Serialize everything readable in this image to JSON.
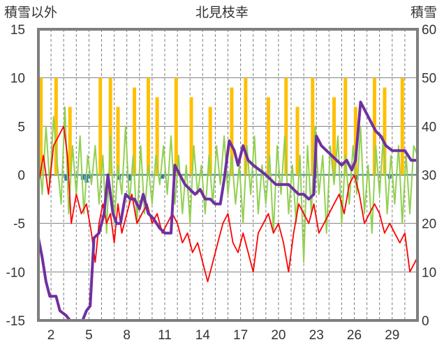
{
  "chart_data": {
    "type": "line",
    "title": "北見枝幸",
    "ylabel": "積雪以外",
    "y2label": "積雪",
    "ylim": [
      -15,
      15
    ],
    "y2lim": [
      0,
      60
    ],
    "yticks": [
      "15",
      "10",
      "5",
      "0",
      "-5",
      "-10",
      "-15"
    ],
    "y2ticks": [
      "60",
      "50",
      "40",
      "30",
      "20",
      "10",
      "0"
    ],
    "xlim": [
      1,
      31
    ],
    "xticks": [
      "2",
      "5",
      "8",
      "11",
      "14",
      "17",
      "20",
      "23",
      "26",
      "29"
    ],
    "grid": true,
    "colors": {
      "frame": "#7f7f7f",
      "grid": "#7f7f7f",
      "temperature": "#ff0000",
      "green_series": "#92d050",
      "snowfall_bars": "#ffc000",
      "negative_bars": "#2e75b6",
      "snow_depth": "#7030a0",
      "zero_line": "#5f8f8f"
    },
    "series": [
      {
        "type": "bar",
        "color": "#ffc000",
        "axis": "left",
        "points": [
          [
            1.2,
            10
          ],
          [
            2.4,
            10
          ],
          [
            3.5,
            7
          ],
          [
            5.9,
            10
          ],
          [
            6.7,
            10
          ],
          [
            7.3,
            7
          ],
          [
            8.6,
            9
          ],
          [
            9.7,
            10
          ],
          [
            10.4,
            8
          ],
          [
            11.9,
            10
          ],
          [
            13.1,
            8
          ],
          [
            14.6,
            7
          ],
          [
            16.3,
            9
          ],
          [
            17.4,
            10
          ],
          [
            19.2,
            8
          ],
          [
            20.6,
            10
          ],
          [
            21.5,
            7
          ],
          [
            22.7,
            10
          ],
          [
            24.4,
            8
          ],
          [
            25.3,
            10
          ],
          [
            26.1,
            7
          ],
          [
            27.6,
            10
          ],
          [
            28.4,
            9
          ],
          [
            29.8,
            10
          ]
        ]
      },
      {
        "type": "bar",
        "color": "#2e75b6",
        "axis": "left",
        "points": [
          [
            3.2,
            -0.6
          ],
          [
            4.5,
            -0.5
          ],
          [
            4.8,
            -0.8
          ],
          [
            5.1,
            -0.4
          ],
          [
            7.4,
            -0.5
          ],
          [
            8.2,
            -0.6
          ],
          [
            10.8,
            -0.4
          ],
          [
            26.2,
            -0.5
          ],
          [
            28.8,
            -0.4
          ]
        ]
      },
      {
        "type": "line",
        "color": "#92d050",
        "axis": "left",
        "points": [
          [
            1,
            3
          ],
          [
            1.3,
            -2
          ],
          [
            1.6,
            5
          ],
          [
            1.9,
            -1
          ],
          [
            2.2,
            6
          ],
          [
            2.5,
            1
          ],
          [
            2.8,
            -3
          ],
          [
            3.1,
            7
          ],
          [
            3.4,
            -4
          ],
          [
            3.7,
            3
          ],
          [
            4,
            -2
          ],
          [
            4.3,
            4
          ],
          [
            4.6,
            -4
          ],
          [
            4.9,
            2
          ],
          [
            5.2,
            -1
          ],
          [
            5.5,
            3
          ],
          [
            5.8,
            -3
          ],
          [
            6.1,
            2
          ],
          [
            6.4,
            -6
          ],
          [
            6.7,
            4
          ],
          [
            7,
            -5
          ],
          [
            7.3,
            1
          ],
          [
            7.6,
            -2
          ],
          [
            7.9,
            5
          ],
          [
            8.2,
            -3
          ],
          [
            8.5,
            2
          ],
          [
            8.8,
            -5
          ],
          [
            9.1,
            3
          ],
          [
            9.4,
            -4
          ],
          [
            9.7,
            1
          ],
          [
            10,
            -3
          ],
          [
            10.3,
            2
          ],
          [
            10.6,
            -1
          ],
          [
            10.9,
            3
          ],
          [
            11.2,
            -2
          ],
          [
            11.5,
            4
          ],
          [
            11.8,
            -3
          ],
          [
            12.1,
            2
          ],
          [
            12.4,
            -4
          ],
          [
            12.7,
            1
          ],
          [
            13,
            -5
          ],
          [
            13.3,
            3
          ],
          [
            13.6,
            -2
          ],
          [
            13.9,
            1
          ],
          [
            14.2,
            -4
          ],
          [
            14.5,
            2
          ],
          [
            14.8,
            -3
          ],
          [
            15.1,
            3
          ],
          [
            15.4,
            -1
          ],
          [
            15.7,
            4
          ],
          [
            16,
            -2
          ],
          [
            16.3,
            2
          ],
          [
            16.6,
            -3
          ],
          [
            16.9,
            1
          ],
          [
            17.2,
            -5
          ],
          [
            17.5,
            3
          ],
          [
            17.8,
            -2
          ],
          [
            18.1,
            4
          ],
          [
            18.4,
            -4
          ],
          [
            18.7,
            1
          ],
          [
            19,
            -3
          ],
          [
            19.3,
            2
          ],
          [
            19.6,
            -6
          ],
          [
            19.9,
            3
          ],
          [
            20.2,
            -2
          ],
          [
            20.5,
            4
          ],
          [
            20.8,
            -4
          ],
          [
            21.1,
            1
          ],
          [
            21.4,
            -5
          ],
          [
            21.7,
            2
          ],
          [
            22,
            -9
          ],
          [
            22.3,
            3
          ],
          [
            22.6,
            -4
          ],
          [
            22.9,
            5
          ],
          [
            23.2,
            -2
          ],
          [
            23.5,
            2
          ],
          [
            23.8,
            -6
          ],
          [
            24.1,
            3
          ],
          [
            24.4,
            -1
          ],
          [
            24.7,
            4
          ],
          [
            25,
            -5
          ],
          [
            25.3,
            2
          ],
          [
            25.6,
            -3
          ],
          [
            25.9,
            3
          ],
          [
            26.2,
            -2
          ],
          [
            26.5,
            5
          ],
          [
            26.8,
            -4
          ],
          [
            27.1,
            1
          ],
          [
            27.4,
            -6
          ],
          [
            27.7,
            3
          ],
          [
            28,
            -2
          ],
          [
            28.3,
            4
          ],
          [
            28.6,
            -4
          ],
          [
            28.9,
            2
          ],
          [
            29.2,
            -3
          ],
          [
            29.5,
            3
          ],
          [
            29.8,
            -5
          ],
          [
            30.1,
            2
          ],
          [
            30.4,
            -4
          ],
          [
            30.7,
            3
          ],
          [
            31,
            2
          ]
        ]
      },
      {
        "type": "line",
        "color": "#ff0000",
        "axis": "left",
        "points": [
          [
            1,
            -1
          ],
          [
            1.4,
            2
          ],
          [
            1.8,
            -2
          ],
          [
            2.2,
            3
          ],
          [
            2.6,
            4
          ],
          [
            3,
            5
          ],
          [
            3.3,
            2
          ],
          [
            3.6,
            -5
          ],
          [
            4,
            -2
          ],
          [
            4.4,
            -4
          ],
          [
            4.8,
            -3
          ],
          [
            5.2,
            -6
          ],
          [
            5.5,
            -9
          ],
          [
            5.8,
            -5
          ],
          [
            6.1,
            -3
          ],
          [
            6.4,
            -5
          ],
          [
            6.7,
            -4
          ],
          [
            7,
            -7
          ],
          [
            7.3,
            -3
          ],
          [
            7.6,
            -6
          ],
          [
            8,
            -4
          ],
          [
            8.4,
            -2
          ],
          [
            8.8,
            -5
          ],
          [
            9.2,
            -4
          ],
          [
            9.6,
            -3
          ],
          [
            10,
            -5
          ],
          [
            10.4,
            -4
          ],
          [
            10.8,
            -6
          ],
          [
            11.2,
            -5
          ],
          [
            11.6,
            -4
          ],
          [
            12,
            -5
          ],
          [
            12.4,
            -7
          ],
          [
            12.8,
            -6
          ],
          [
            13.2,
            -8
          ],
          [
            13.6,
            -7
          ],
          [
            14,
            -9
          ],
          [
            14.4,
            -11
          ],
          [
            14.8,
            -9
          ],
          [
            15.2,
            -7
          ],
          [
            15.6,
            -5
          ],
          [
            16,
            -4
          ],
          [
            16.4,
            -7
          ],
          [
            16.8,
            -8
          ],
          [
            17.2,
            -6
          ],
          [
            17.6,
            -8
          ],
          [
            18,
            -10
          ],
          [
            18.4,
            -6
          ],
          [
            18.8,
            -5
          ],
          [
            19.2,
            -4
          ],
          [
            19.6,
            -6
          ],
          [
            20,
            -5
          ],
          [
            20.4,
            -7
          ],
          [
            20.8,
            -10
          ],
          [
            21.2,
            -6
          ],
          [
            21.6,
            -3
          ],
          [
            22,
            -4
          ],
          [
            22.4,
            -5
          ],
          [
            22.8,
            -3
          ],
          [
            23.2,
            -6
          ],
          [
            23.6,
            -5
          ],
          [
            24,
            -4
          ],
          [
            24.4,
            -3
          ],
          [
            24.8,
            -2
          ],
          [
            25.2,
            -4
          ],
          [
            25.6,
            -1
          ],
          [
            26,
            0
          ],
          [
            26.4,
            -2
          ],
          [
            26.8,
            -5
          ],
          [
            27.2,
            -4
          ],
          [
            27.6,
            -3
          ],
          [
            28,
            -4
          ],
          [
            28.4,
            -6
          ],
          [
            28.8,
            -5
          ],
          [
            29.2,
            -6
          ],
          [
            29.6,
            -7
          ],
          [
            30,
            -6
          ],
          [
            30.4,
            -10
          ],
          [
            30.8,
            -9
          ],
          [
            31,
            -8.5
          ]
        ]
      },
      {
        "type": "line",
        "color": "#7030a0",
        "axis": "right",
        "points": [
          [
            1,
            17
          ],
          [
            1.3,
            13
          ],
          [
            1.6,
            8
          ],
          [
            1.9,
            5
          ],
          [
            2.4,
            5
          ],
          [
            2.7,
            2
          ],
          [
            3.2,
            1
          ],
          [
            3.5,
            0
          ],
          [
            4.5,
            0
          ],
          [
            4.8,
            2
          ],
          [
            5.1,
            3
          ],
          [
            5.4,
            17
          ],
          [
            5.8,
            18
          ],
          [
            6.2,
            22
          ],
          [
            6.5,
            30
          ],
          [
            6.9,
            22
          ],
          [
            7.2,
            20
          ],
          [
            7.5,
            20
          ],
          [
            7.9,
            26
          ],
          [
            8.3,
            25
          ],
          [
            8.6,
            25
          ],
          [
            9,
            23
          ],
          [
            9.3,
            26
          ],
          [
            9.7,
            22
          ],
          [
            10.1,
            21
          ],
          [
            10.6,
            19
          ],
          [
            11,
            18
          ],
          [
            11.5,
            18
          ],
          [
            11.8,
            32
          ],
          [
            12.2,
            30
          ],
          [
            12.6,
            28
          ],
          [
            13,
            27
          ],
          [
            13.4,
            26
          ],
          [
            13.8,
            27
          ],
          [
            14.2,
            25
          ],
          [
            14.6,
            25
          ],
          [
            15,
            24
          ],
          [
            15.4,
            24
          ],
          [
            15.7,
            29
          ],
          [
            16.1,
            37
          ],
          [
            16.5,
            35
          ],
          [
            16.8,
            32
          ],
          [
            17.2,
            36
          ],
          [
            17.6,
            33
          ],
          [
            18,
            32
          ],
          [
            18.5,
            31
          ],
          [
            19,
            30
          ],
          [
            19.4,
            29
          ],
          [
            19.8,
            28
          ],
          [
            20.3,
            28
          ],
          [
            20.8,
            28
          ],
          [
            21.2,
            27
          ],
          [
            21.6,
            26
          ],
          [
            22,
            26
          ],
          [
            22.4,
            25
          ],
          [
            22.8,
            26
          ],
          [
            23,
            38
          ],
          [
            23.4,
            36
          ],
          [
            23.8,
            35
          ],
          [
            24.2,
            34
          ],
          [
            24.6,
            33
          ],
          [
            25,
            32
          ],
          [
            25.4,
            33
          ],
          [
            25.8,
            31
          ],
          [
            26.1,
            33
          ],
          [
            26.5,
            45
          ],
          [
            26.9,
            43
          ],
          [
            27.3,
            41
          ],
          [
            27.7,
            39
          ],
          [
            28.1,
            38
          ],
          [
            28.5,
            36
          ],
          [
            29,
            35
          ],
          [
            29.5,
            35
          ],
          [
            30,
            35
          ],
          [
            30.5,
            33
          ],
          [
            31,
            33
          ]
        ]
      }
    ]
  }
}
